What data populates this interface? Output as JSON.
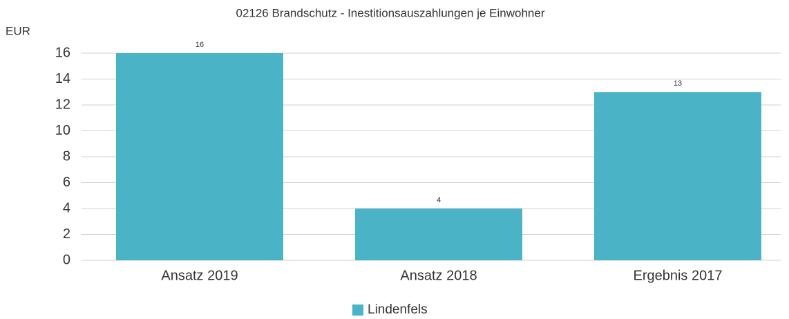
{
  "chart_data": {
    "type": "bar",
    "title": "02126 Brandschutz - Inestitionsauszahlungen je Einwohner",
    "y_label": "EUR",
    "categories": [
      "Ansatz 2019",
      "Ansatz 2018",
      "Ergebnis 2017"
    ],
    "series": [
      {
        "name": "Lindenfels",
        "color": "#4ab3c6",
        "values": [
          16,
          4,
          13
        ]
      }
    ],
    "ylim": [
      0,
      16
    ],
    "yticks": [
      0,
      2,
      4,
      6,
      8,
      10,
      12,
      14,
      16
    ],
    "grid": true,
    "legend": "bottom"
  }
}
